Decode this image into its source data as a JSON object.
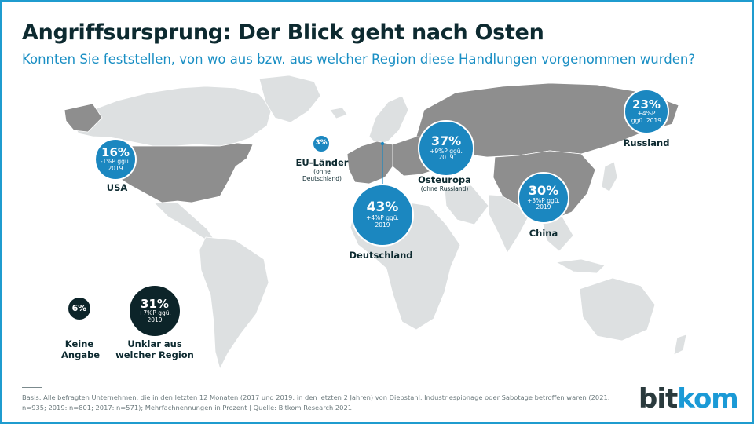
{
  "title": "Angriffsursprung: Der Blick geht nach Osten",
  "subtitle": "Konnten Sie feststellen, von wo aus bzw. aus welcher Region diese Handlungen vorgenommen wurden?",
  "colors": {
    "accent": "#1b87c0",
    "dark": "#0c2429",
    "land": "#dde0e1",
    "highlight": "#8e8e8e"
  },
  "regions": {
    "usa": {
      "value": "16%",
      "change": "-1%P ggü. 2019",
      "label": "USA"
    },
    "eu": {
      "value": "3%",
      "label": "EU-Länder",
      "note": "(ohne Deutschland)"
    },
    "deutschland": {
      "value": "43%",
      "change": "+4%P ggü. 2019",
      "label": "Deutschland"
    },
    "osteuropa": {
      "value": "37%",
      "change": "+9%P ggü. 2019",
      "label": "Osteuropa",
      "note": "(ohne Russland)"
    },
    "russland": {
      "value": "23%",
      "change": "+4%P ggü. 2019",
      "label": "Russland"
    },
    "china": {
      "value": "30%",
      "change": "+3%P ggü. 2019",
      "label": "China"
    },
    "keine_angabe": {
      "value": "6%",
      "label": "Keine Angabe"
    },
    "unklar": {
      "value": "31%",
      "change": "+7%P ggü. 2019",
      "label": "Unklar aus welcher Region"
    }
  },
  "footer": "Basis: Alle befragten Unternehmen, die in den letzten 12 Monaten (2017 und 2019: in den letzten 2 Jahren) von Diebstahl, Industriespionage oder Sabotage betroffen waren (2021: n=935; 2019: n=801; 2017: n=571); Mehrfachnennungen in Prozent | Quelle: Bitkom Research 2021",
  "logo": {
    "part1": "bit",
    "part2": "kom"
  }
}
